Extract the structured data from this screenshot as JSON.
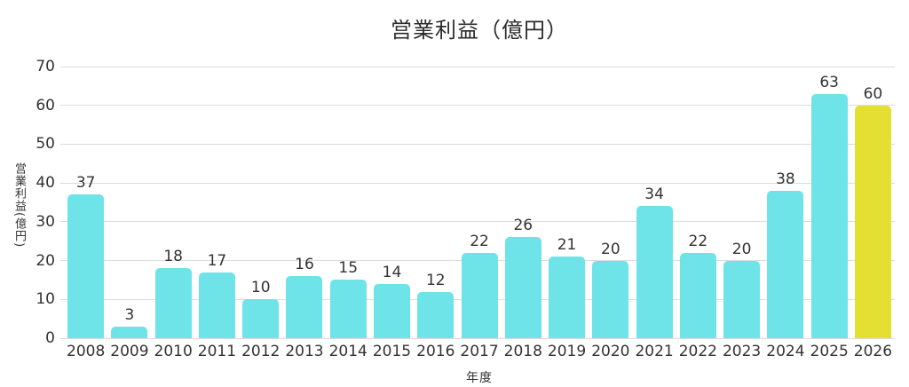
{
  "chart_data": {
    "type": "bar",
    "title": "営業利益（億円）",
    "xlabel": "年度",
    "ylabel": "営業利益(億円)",
    "categories": [
      "2008",
      "2009",
      "2010",
      "2011",
      "2012",
      "2013",
      "2014",
      "2015",
      "2016",
      "2017",
      "2018",
      "2019",
      "2020",
      "2021",
      "2022",
      "2023",
      "2024",
      "2025",
      "2026"
    ],
    "values": [
      37,
      3,
      18,
      17,
      10,
      16,
      15,
      14,
      12,
      22,
      26,
      21,
      20,
      34,
      22,
      20,
      38,
      63,
      60
    ],
    "highlight_index": 18,
    "colors": {
      "bar_default": "#6ee3e8",
      "bar_highlight": "#e4e032",
      "grid": "#dcdcdc",
      "text": "#333333",
      "title_text": "#2b2b2b"
    },
    "ylim": [
      0,
      70
    ],
    "yticks": [
      0,
      10,
      20,
      30,
      40,
      50,
      60,
      70
    ],
    "grid": true,
    "value_labels": true,
    "legend": "none"
  }
}
